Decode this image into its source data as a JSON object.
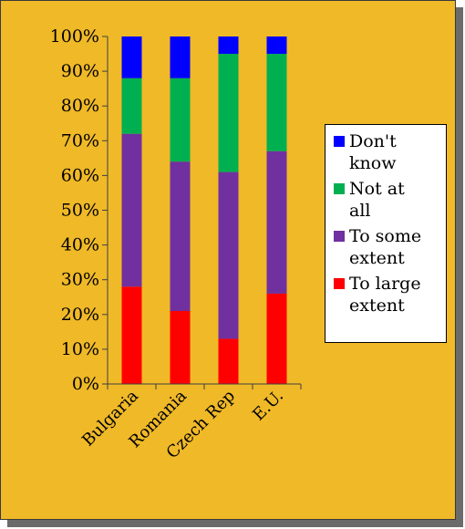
{
  "chart_data": {
    "type": "bar",
    "stacked": true,
    "categories": [
      "Bulgaria",
      "Romania",
      "Czech Rep",
      "E.U."
    ],
    "series": [
      {
        "name": "To large extent",
        "color": "#ff0000",
        "values": [
          28,
          21,
          13,
          26
        ]
      },
      {
        "name": "To some extent",
        "color": "#7030a0",
        "values": [
          44,
          43,
          48,
          41
        ]
      },
      {
        "name": "Not at all",
        "color": "#00b050",
        "values": [
          16,
          24,
          34,
          28
        ]
      },
      {
        "name": "Don't know",
        "color": "#0000ff",
        "values": [
          12,
          12,
          5,
          5
        ]
      }
    ],
    "yticks": [
      "0%",
      "10%",
      "20%",
      "30%",
      "40%",
      "50%",
      "60%",
      "70%",
      "80%",
      "90%",
      "100%"
    ],
    "ylim": [
      0,
      100
    ],
    "legend_position": "right",
    "legend": [
      {
        "label_lines": [
          "Don't",
          "know"
        ],
        "color": "#0000ff"
      },
      {
        "label_lines": [
          "Not at",
          "all"
        ],
        "color": "#00b050"
      },
      {
        "label_lines": [
          "To some",
          "extent"
        ],
        "color": "#7030a0"
      },
      {
        "label_lines": [
          "To large",
          "extent"
        ],
        "color": "#ff0000"
      }
    ]
  }
}
